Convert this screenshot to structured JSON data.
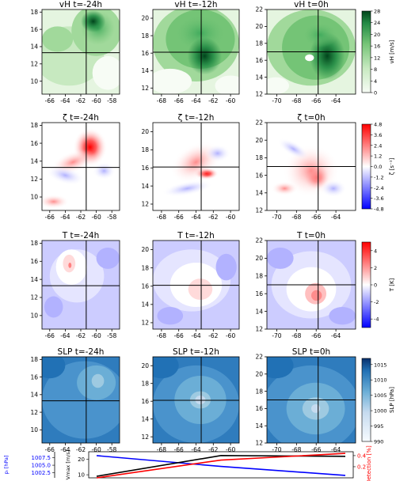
{
  "chart_data": {
    "type": "heatmap",
    "rows": [
      {
        "variable": "vH",
        "titles": [
          "vH  t=-24h",
          "vH  t=-12h",
          "vH  t=0h"
        ],
        "colorbar": {
          "label": "vH [m/s]",
          "ticks": [
            "0",
            "4",
            "8",
            "12",
            "16",
            "20",
            "24",
            "28"
          ],
          "range": [
            0,
            28
          ],
          "colormap": "greens"
        }
      },
      {
        "variable": "zeta",
        "titles": [
          "ζ  t=-24h",
          "ζ  t=-12h",
          "ζ  t=0h"
        ],
        "colorbar": {
          "label": "ζ [s⁻¹]",
          "ticks": [
            "4.8",
            "3.6",
            "2.4",
            "1.2",
            "0.0",
            "-1.2",
            "-2.4",
            "-3.6",
            "-4.8"
          ],
          "range": [
            -4.8,
            4.8
          ],
          "colormap": "bwr"
        }
      },
      {
        "variable": "T",
        "titles": [
          "T  t=-24h",
          "T  t=-12h",
          "T  t=0h"
        ],
        "colorbar": {
          "label": "T [K]",
          "ticks": [
            "4",
            "2",
            "0",
            "-2",
            "-4"
          ],
          "range": [
            -5,
            5
          ],
          "colormap": "bwr"
        }
      },
      {
        "variable": "SLP",
        "titles": [
          "SLP  t=-24h",
          "SLP  t=-12h",
          "SLP  t=0h"
        ],
        "colorbar": {
          "label": "SLP [hPa]",
          "ticks": [
            "1015",
            "1010",
            "1005",
            "1000",
            "995",
            "990"
          ],
          "range": [
            990,
            1017
          ],
          "colormap": "blues"
        }
      }
    ],
    "columns": [
      {
        "time": "t=-24h",
        "xticks": [
          "-66",
          "-64",
          "-62",
          "-60",
          "-58"
        ],
        "xlim": [
          -67,
          -57
        ],
        "yticks": [
          "10",
          "12",
          "14",
          "16",
          "18"
        ],
        "ylim": [
          8.5,
          18.3
        ],
        "center": [
          -61.3,
          13.3
        ]
      },
      {
        "time": "t=-12h",
        "xticks": [
          "-68",
          "-66",
          "-64",
          "-62",
          "-60"
        ],
        "xlim": [
          -69,
          -59
        ],
        "yticks": [
          "12",
          "14",
          "16",
          "18",
          "20"
        ],
        "ylim": [
          11.3,
          21.0
        ],
        "center": [
          -63.4,
          16.1
        ]
      },
      {
        "time": "t=0h",
        "xticks": [
          "-70",
          "-68",
          "-66",
          "-64"
        ],
        "xlim": [
          -71,
          -62
        ],
        "yticks": [
          "12",
          "14",
          "16",
          "18",
          "20",
          "22"
        ],
        "ylim": [
          12,
          22
        ],
        "center": [
          -65.8,
          17.0
        ]
      }
    ],
    "timeseries": {
      "type": "line",
      "x": [
        -24,
        -12,
        0
      ],
      "axes": [
        {
          "side": "left-outer",
          "label": "pₗ [hPa]",
          "ticks": [
            "1002.5",
            "1005.0",
            "1007.5"
          ],
          "ylim": [
            1000.8,
            1009.5
          ]
        },
        {
          "side": "left-inner",
          "label": "Vmax [m/s]",
          "ticks": [
            "10",
            "20"
          ],
          "ylim": [
            8,
            25
          ]
        },
        {
          "side": "right",
          "label": "Detection [%]",
          "ticks": [
            "0.2",
            "0.4"
          ],
          "ylim": [
            0.0,
            0.47
          ]
        }
      ],
      "series": [
        {
          "values": [
            1008.2,
            1004.6,
            1001.6
          ],
          "axis": 0,
          "color": "#0000ff"
        },
        {
          "values": [
            9.0,
            22.5,
            22.0
          ],
          "axis": 1,
          "color": "#000000"
        },
        {
          "values": [
            0.0,
            0.32,
            0.44
          ],
          "axis": 2,
          "color": "#ff0000"
        }
      ]
    }
  }
}
